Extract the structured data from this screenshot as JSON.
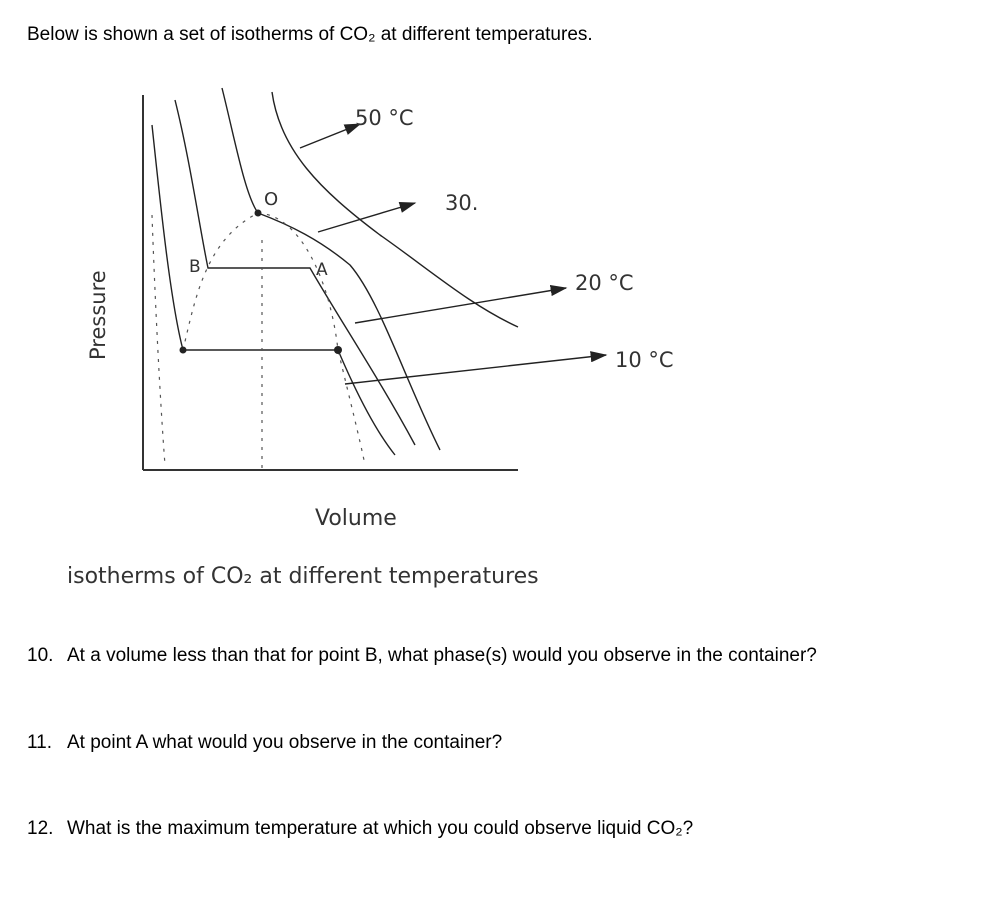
{
  "intro": "Below is shown a set of isotherms of CO₂ at different temperatures.",
  "diagram": {
    "labels": {
      "t50": "50 °C",
      "t30": "30.",
      "t20": "20 °C",
      "t10": "10 °C",
      "point_o": "O",
      "point_b": "B",
      "point_a": "A"
    },
    "y_axis_label": "Pressure",
    "x_axis_label": "Volume",
    "caption": "isotherms of CO₂ at different temperatures"
  },
  "questions": [
    {
      "number": "10.",
      "text": "At a volume less than that for point B, what phase(s) would you observe in the container?"
    },
    {
      "number": "11.",
      "text": "At point A what would you observe in the container?"
    },
    {
      "number": "12.",
      "text": "What is the maximum temperature at which you could observe liquid CO₂?"
    }
  ]
}
